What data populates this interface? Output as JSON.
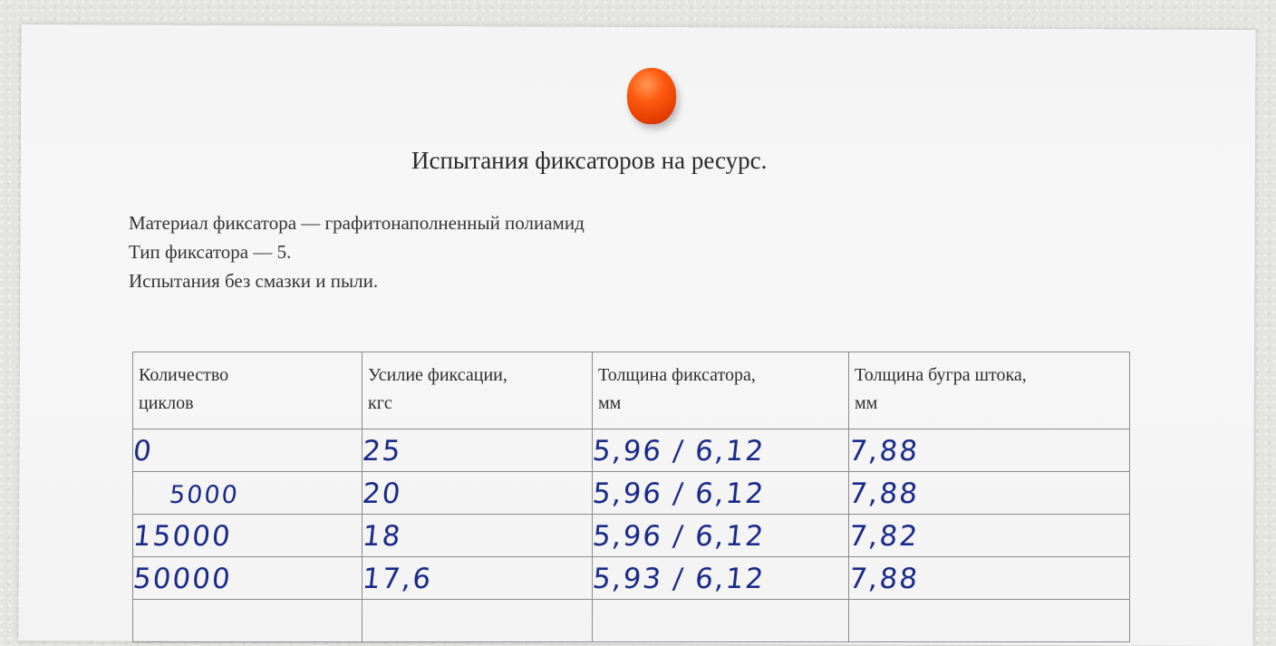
{
  "title": "Испытания фиксаторов на ресурс.",
  "info_lines": [
    "Материал фиксатора — графитонаполненный полиамид",
    "Тип фиксатора — 5.",
    "Испытания без смазки и пыли."
  ],
  "table": {
    "headers": [
      [
        "Количество",
        "циклов"
      ],
      [
        "Усилие фиксации,",
        "кгс"
      ],
      [
        "Толщина фиксатора,",
        "мм"
      ],
      [
        "Толщина бугра штока,",
        "мм"
      ]
    ],
    "rows": [
      [
        "0",
        "25",
        "5,96 / 6,12",
        "7,88"
      ],
      [
        "5000",
        "20",
        "5,96 / 6,12",
        "7,88"
      ],
      [
        "15000",
        "18",
        "5,96 / 6,12",
        "7,82"
      ],
      [
        "50000",
        "17,6",
        "5,93 / 6,12",
        "7,88"
      ],
      [
        "",
        "",
        "",
        ""
      ]
    ]
  },
  "colors": {
    "ink": "#1a2a8a",
    "pin": "#ff5a10",
    "paper": "#f5f5f5"
  }
}
